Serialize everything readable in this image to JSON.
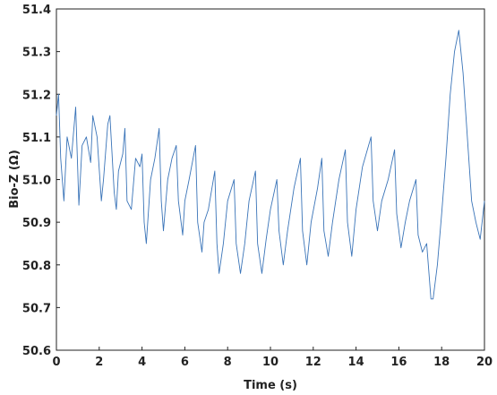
{
  "chart_data": {
    "type": "line",
    "x_label": "Time (s)",
    "y_label": "Bio-Z (Ω)",
    "xlim": [
      0,
      20
    ],
    "xticks": [
      0,
      2,
      4,
      6,
      8,
      10,
      12,
      14,
      16,
      18,
      20
    ],
    "ylim": [
      50.6,
      51.4
    ],
    "yticks": [
      50.6,
      50.7,
      50.8,
      50.9,
      {
        "value": 51,
        "label": "51.0"
      },
      51.1,
      51.2,
      51.3,
      51.4
    ],
    "series": [
      {
        "color": "#3a74b8",
        "x": [
          0,
          0.1,
          0.2,
          0.35,
          0.5,
          0.7,
          0.9,
          1.05,
          1.2,
          1.4,
          1.6,
          1.7,
          1.9,
          2.1,
          2.2,
          2.4,
          2.5,
          2.7,
          2.8,
          2.9,
          3.1,
          3.2,
          3.3,
          3.5,
          3.7,
          3.9,
          4.0,
          4.1,
          4.2,
          4.4,
          4.6,
          4.8,
          4.9,
          5.0,
          5.2,
          5.4,
          5.6,
          5.7,
          5.9,
          6.0,
          6.2,
          6.5,
          6.6,
          6.8,
          6.9,
          7.1,
          7.4,
          7.5,
          7.6,
          7.8,
          8.0,
          8.3,
          8.4,
          8.6,
          8.8,
          9.0,
          9.3,
          9.4,
          9.6,
          9.8,
          10.0,
          10.3,
          10.4,
          10.6,
          10.8,
          11.1,
          11.4,
          11.5,
          11.7,
          11.9,
          12.2,
          12.4,
          12.5,
          12.7,
          12.9,
          13.2,
          13.5,
          13.6,
          13.8,
          14.0,
          14.3,
          14.7,
          14.8,
          15.0,
          15.2,
          15.5,
          15.8,
          15.9,
          16.1,
          16.3,
          16.5,
          16.8,
          16.9,
          17.1,
          17.3,
          17.5,
          17.6,
          17.8,
          18.0,
          18.2,
          18.4,
          18.6,
          18.8,
          19.0,
          19.2,
          19.4,
          19.6,
          19.8,
          20.0
        ],
        "values": [
          51.15,
          51.2,
          51.05,
          50.95,
          51.1,
          51.05,
          51.17,
          50.94,
          51.08,
          51.1,
          51.04,
          51.15,
          51.1,
          50.95,
          51.0,
          51.13,
          51.15,
          50.97,
          50.93,
          51.02,
          51.06,
          51.12,
          50.95,
          50.93,
          51.05,
          51.03,
          51.06,
          50.9,
          50.85,
          51.0,
          51.05,
          51.12,
          50.95,
          50.88,
          51.0,
          51.05,
          51.08,
          50.95,
          50.87,
          50.95,
          51.0,
          51.08,
          50.9,
          50.83,
          50.9,
          50.93,
          51.02,
          50.85,
          50.78,
          50.85,
          50.95,
          51.0,
          50.85,
          50.78,
          50.85,
          50.95,
          51.02,
          50.85,
          50.78,
          50.86,
          50.93,
          51.0,
          50.88,
          50.8,
          50.88,
          50.98,
          51.05,
          50.88,
          50.8,
          50.9,
          50.98,
          51.05,
          50.88,
          50.82,
          50.9,
          51.0,
          51.07,
          50.9,
          50.82,
          50.93,
          51.03,
          51.1,
          50.95,
          50.88,
          50.95,
          51.0,
          51.07,
          50.92,
          50.84,
          50.9,
          50.95,
          51.0,
          50.87,
          50.83,
          50.85,
          50.72,
          50.72,
          50.8,
          50.92,
          51.05,
          51.2,
          51.3,
          51.35,
          51.25,
          51.1,
          50.95,
          50.9,
          50.86,
          50.95
        ]
      }
    ]
  }
}
